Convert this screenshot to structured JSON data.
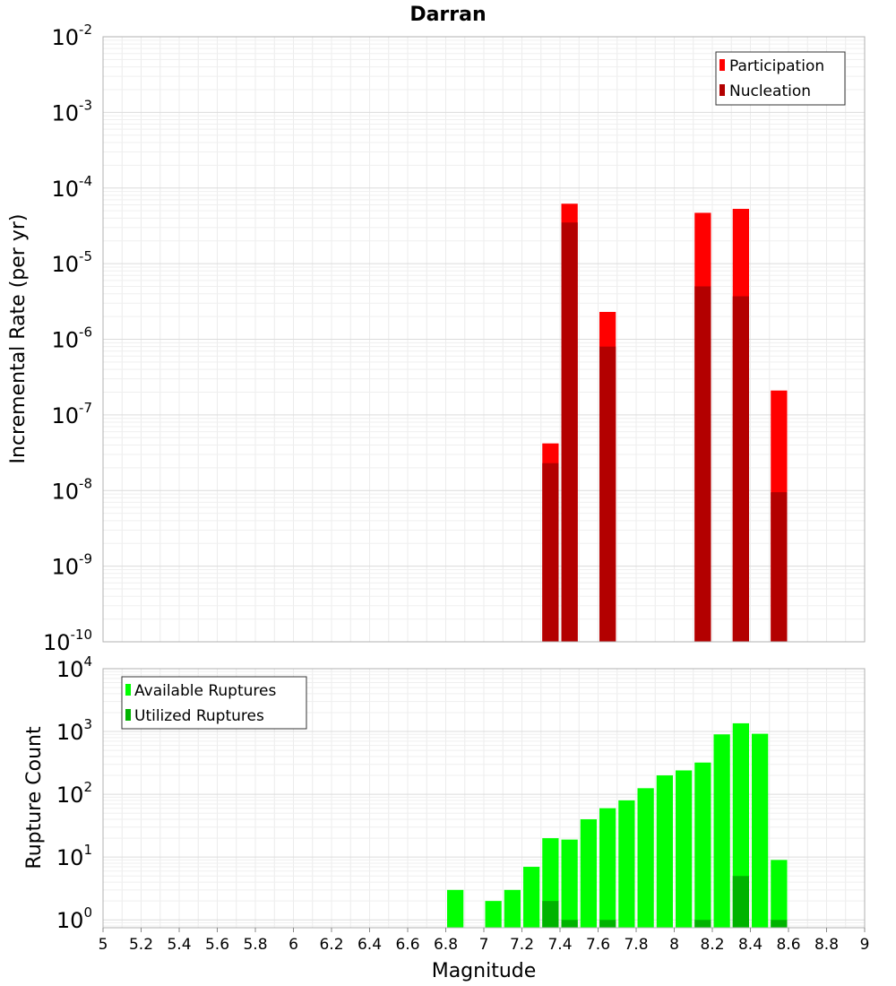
{
  "chart_data": [
    {
      "type": "bar",
      "title": "Darran",
      "xlabel": "",
      "ylabel": "Incremental Rate (per yr)",
      "xlim": [
        5,
        9
      ],
      "ylim": [
        1e-10,
        0.01
      ],
      "log_y": true,
      "bin_width": 0.1,
      "grid": true,
      "legend_position": "top-right",
      "series": [
        {
          "name": "Participation",
          "color": "#ff0000",
          "x": [
            7.35,
            7.45,
            7.65,
            8.15,
            8.35,
            8.55
          ],
          "values": [
            4.2e-08,
            6.2e-05,
            2.3e-06,
            4.7e-05,
            5.3e-05,
            2.1e-07
          ]
        },
        {
          "name": "Nucleation",
          "color": "#b30000",
          "x": [
            7.35,
            7.45,
            7.65,
            8.15,
            8.35,
            8.55
          ],
          "values": [
            2.3e-08,
            3.5e-05,
            8e-07,
            5e-06,
            3.7e-06,
            9.5e-09
          ]
        }
      ],
      "y_ticks": [
        {
          "base": "10",
          "exp": "-2"
        },
        {
          "base": "10",
          "exp": "-3"
        },
        {
          "base": "10",
          "exp": "-4"
        },
        {
          "base": "10",
          "exp": "-5"
        },
        {
          "base": "10",
          "exp": "-6"
        },
        {
          "base": "10",
          "exp": "-7"
        },
        {
          "base": "10",
          "exp": "-8"
        },
        {
          "base": "10",
          "exp": "-9"
        },
        {
          "base": "10",
          "exp": "-10"
        }
      ]
    },
    {
      "type": "bar",
      "title": "",
      "xlabel": "Magnitude",
      "ylabel": "Rupture Count",
      "xlim": [
        5,
        9
      ],
      "ylim": [
        0.75,
        10000
      ],
      "log_y": true,
      "bin_width": 0.1,
      "grid": true,
      "legend_position": "top-left",
      "x_ticks": [
        "5",
        "5.2",
        "5.4",
        "5.6",
        "5.8",
        "6",
        "6.2",
        "6.4",
        "6.6",
        "6.8",
        "7",
        "7.2",
        "7.4",
        "7.6",
        "7.8",
        "8",
        "8.2",
        "8.4",
        "8.6",
        "8.8",
        "9"
      ],
      "y_ticks": [
        {
          "base": "10",
          "exp": "4"
        },
        {
          "base": "10",
          "exp": "3"
        },
        {
          "base": "10",
          "exp": "2"
        },
        {
          "base": "10",
          "exp": "1"
        },
        {
          "base": "10",
          "exp": "0"
        }
      ],
      "series": [
        {
          "name": "Available Ruptures",
          "color": "#00ff00",
          "x": [
            6.85,
            7.05,
            7.15,
            7.25,
            7.35,
            7.45,
            7.55,
            7.65,
            7.75,
            7.85,
            7.95,
            8.05,
            8.15,
            8.25,
            8.35,
            8.45,
            8.55
          ],
          "values": [
            3,
            2,
            3,
            7,
            20,
            19,
            40,
            60,
            80,
            125,
            200,
            240,
            320,
            900,
            1350,
            920,
            9
          ]
        },
        {
          "name": "Utilized Ruptures",
          "color": "#00b300",
          "x": [
            7.35,
            7.45,
            7.65,
            8.15,
            8.35,
            8.55
          ],
          "values": [
            2,
            1,
            1,
            1,
            5,
            1
          ]
        }
      ]
    }
  ]
}
